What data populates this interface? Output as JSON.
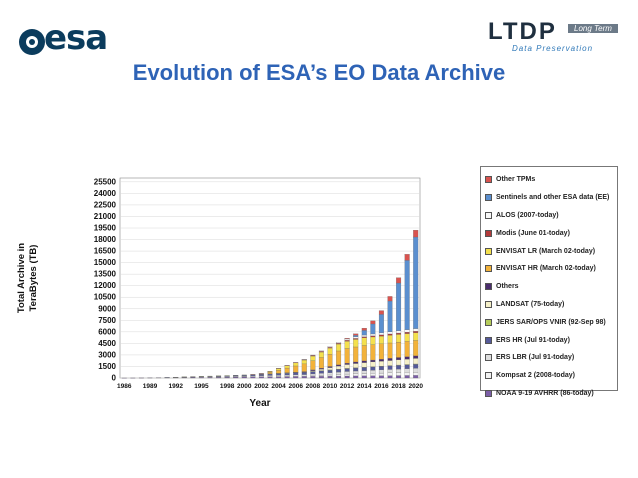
{
  "header": {
    "logo_text": "esa",
    "ltdp_main": "LTDP",
    "ltdp_long": "Long Term",
    "ltdp_sub": "Data Preservation",
    "title": "Evolution of ESA’s EO Data Archive"
  },
  "chart_data": {
    "type": "bar",
    "stacked": true,
    "title": "",
    "xlabel": "Year",
    "ylabel": "Total Archive in TeraBytes (TB)",
    "ylim": [
      0,
      26000
    ],
    "yticks": [
      0,
      1500,
      3000,
      4500,
      6000,
      7500,
      9000,
      10500,
      12000,
      13500,
      15000,
      16500,
      18000,
      19500,
      21000,
      22500,
      24000,
      25500
    ],
    "xticks": [
      "1986",
      "1989",
      "1992",
      "1995",
      "1998",
      "2000",
      "2002",
      "2004",
      "2006",
      "2008",
      "2010",
      "2012",
      "2014",
      "2016",
      "2018",
      "2020"
    ],
    "grid": true,
    "legend_position": "right",
    "categories": [
      "1986",
      "1987",
      "1988",
      "1989",
      "1990",
      "1991",
      "1992",
      "1993",
      "1994",
      "1995",
      "1996",
      "1997",
      "1998",
      "1999",
      "2000",
      "2001",
      "2002",
      "2003",
      "2004",
      "2005",
      "2006",
      "2007",
      "2008",
      "2009",
      "2010",
      "2011",
      "2012",
      "2013",
      "2014",
      "2015",
      "2016",
      "2017",
      "2018",
      "2019",
      "2020"
    ],
    "series": [
      {
        "name": "NOAA 9-19 AVHRR (86-today)",
        "color": "#7b5ea7",
        "values": [
          5,
          10,
          20,
          30,
          40,
          50,
          60,
          70,
          80,
          90,
          100,
          110,
          120,
          130,
          140,
          150,
          160,
          170,
          180,
          190,
          200,
          210,
          220,
          230,
          240,
          250,
          260,
          270,
          280,
          290,
          300,
          310,
          320,
          330,
          340
        ]
      },
      {
        "name": "Kompsat 2 (2008-today)",
        "color": "#f2f2f2",
        "values": [
          0,
          0,
          0,
          0,
          0,
          0,
          0,
          0,
          0,
          0,
          0,
          0,
          0,
          0,
          0,
          0,
          0,
          0,
          0,
          0,
          0,
          0,
          50,
          100,
          150,
          200,
          250,
          280,
          300,
          320,
          340,
          360,
          380,
          400,
          420
        ]
      },
      {
        "name": "ERS LBR (Jul 91-today)",
        "color": "#dddddd",
        "values": [
          0,
          0,
          0,
          0,
          0,
          10,
          20,
          30,
          40,
          50,
          60,
          70,
          80,
          90,
          100,
          120,
          140,
          160,
          180,
          200,
          220,
          240,
          260,
          280,
          300,
          320,
          340,
          360,
          380,
          400,
          420,
          440,
          460,
          480,
          500
        ]
      },
      {
        "name": "ERS HR (Jul 91-today)",
        "color": "#555a99",
        "values": [
          0,
          0,
          0,
          0,
          0,
          20,
          30,
          40,
          50,
          60,
          70,
          80,
          90,
          110,
          130,
          150,
          170,
          190,
          210,
          230,
          250,
          270,
          290,
          310,
          330,
          350,
          370,
          390,
          410,
          430,
          450,
          470,
          490,
          510,
          530
        ]
      },
      {
        "name": "JERS SAR/OPS VNIR (92-Sep 98)",
        "color": "#b5cc5a",
        "values": [
          0,
          0,
          0,
          0,
          0,
          0,
          5,
          10,
          15,
          20,
          25,
          30,
          35,
          35,
          35,
          35,
          35,
          35,
          35,
          35,
          35,
          35,
          35,
          35,
          35,
          35,
          35,
          35,
          35,
          35,
          35,
          35,
          35,
          35,
          35
        ]
      },
      {
        "name": "LANDSAT (75-today)",
        "color": "#f5f0c8",
        "values": [
          0,
          0,
          0,
          0,
          0,
          0,
          0,
          0,
          0,
          0,
          0,
          0,
          0,
          0,
          0,
          0,
          0,
          0,
          0,
          0,
          0,
          0,
          100,
          200,
          300,
          400,
          500,
          550,
          600,
          620,
          640,
          660,
          680,
          700,
          720
        ]
      },
      {
        "name": "Others",
        "color": "#4b2d6e",
        "values": [
          0,
          0,
          0,
          0,
          0,
          0,
          0,
          0,
          0,
          0,
          0,
          0,
          0,
          0,
          0,
          0,
          0,
          0,
          20,
          40,
          60,
          80,
          100,
          120,
          140,
          160,
          180,
          200,
          220,
          240,
          260,
          280,
          300,
          320,
          340
        ]
      },
      {
        "name": "ENVISAT HR (March 02-today)",
        "color": "#f2b23a",
        "values": [
          0,
          0,
          0,
          0,
          0,
          0,
          0,
          0,
          0,
          0,
          0,
          0,
          0,
          0,
          0,
          0,
          50,
          200,
          400,
          600,
          800,
          1000,
          1200,
          1400,
          1600,
          1800,
          1900,
          1950,
          2000,
          2000,
          2000,
          2000,
          2000,
          2000,
          2000
        ]
      },
      {
        "name": "ENVISAT LR (March 02-today)",
        "color": "#f4e04d",
        "values": [
          0,
          0,
          0,
          0,
          0,
          0,
          0,
          0,
          0,
          0,
          0,
          0,
          0,
          0,
          0,
          0,
          20,
          100,
          200,
          300,
          400,
          500,
          600,
          700,
          800,
          900,
          950,
          980,
          1000,
          1000,
          1000,
          1000,
          1000,
          1000,
          1000
        ]
      },
      {
        "name": "Modis (June 01-today)",
        "color": "#b33a3a",
        "values": [
          0,
          0,
          0,
          0,
          0,
          0,
          0,
          0,
          0,
          0,
          0,
          0,
          0,
          0,
          0,
          10,
          20,
          30,
          40,
          50,
          60,
          70,
          80,
          90,
          100,
          110,
          120,
          130,
          140,
          150,
          160,
          170,
          180,
          190,
          200
        ]
      },
      {
        "name": "ALOS (2007-today)",
        "color": "#f8f8f8",
        "values": [
          0,
          0,
          0,
          0,
          0,
          0,
          0,
          0,
          0,
          0,
          0,
          0,
          0,
          0,
          0,
          0,
          0,
          0,
          0,
          0,
          0,
          20,
          50,
          80,
          110,
          140,
          170,
          200,
          220,
          240,
          260,
          280,
          300,
          320,
          340
        ]
      },
      {
        "name": "Sentinels and other ESA data (EE)",
        "color": "#5b8fcf",
        "values": [
          0,
          0,
          0,
          0,
          0,
          0,
          0,
          0,
          0,
          0,
          0,
          0,
          0,
          0,
          0,
          0,
          0,
          0,
          0,
          0,
          0,
          0,
          0,
          0,
          0,
          0,
          0,
          200,
          600,
          1300,
          2400,
          4000,
          6200,
          9000,
          11900
        ]
      },
      {
        "name": "Other TPMs",
        "color": "#d9534f",
        "values": [
          0,
          0,
          0,
          0,
          0,
          0,
          0,
          0,
          0,
          0,
          0,
          0,
          0,
          0,
          0,
          0,
          0,
          0,
          0,
          0,
          0,
          0,
          0,
          0,
          0,
          0,
          100,
          200,
          300,
          400,
          500,
          600,
          700,
          800,
          900
        ]
      }
    ]
  }
}
